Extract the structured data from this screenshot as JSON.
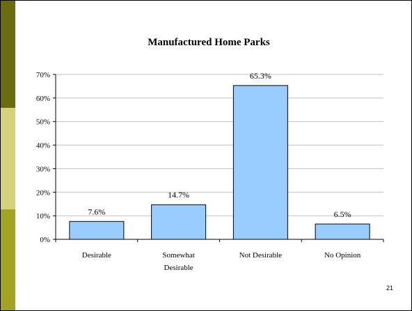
{
  "slide": {
    "page_number": "21",
    "sidebar_colors": [
      "#6b6b10",
      "#d4d27a",
      "#a3a322"
    ]
  },
  "chart_data": {
    "type": "bar",
    "title": "Manufactured Home Parks",
    "categories": [
      [
        "Desirable"
      ],
      [
        "Somewhat",
        "Desirable"
      ],
      [
        "Not Desirable"
      ],
      [
        "No Opinion"
      ]
    ],
    "values": [
      7.6,
      14.7,
      65.3,
      6.5
    ],
    "value_labels": [
      "7.6%",
      "14.7%",
      "65.3%",
      "6.5%"
    ],
    "y_ticks": [
      0,
      10,
      20,
      30,
      40,
      50,
      60,
      70
    ],
    "y_tick_labels": [
      "0%",
      "10%",
      "20%",
      "30%",
      "40%",
      "50%",
      "60%",
      "70%"
    ],
    "ylim": [
      0,
      70
    ],
    "grid": true,
    "bar_color": "#99ccff",
    "bar_edge_color": "#000000",
    "grid_color": "#c0c0c0"
  }
}
